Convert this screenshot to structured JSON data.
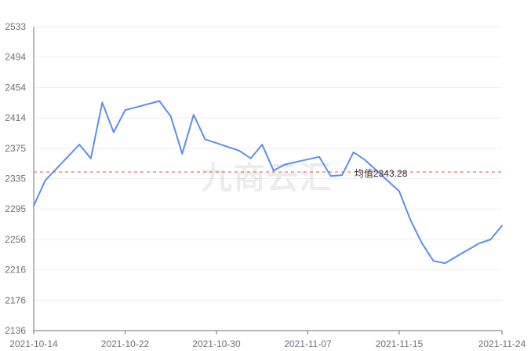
{
  "chart_data": {
    "type": "line",
    "title": "",
    "xlabel": "",
    "ylabel": "",
    "ylim": [
      2136,
      2533
    ],
    "yticks": [
      "2533",
      "2494",
      "2454",
      "2414",
      "2375",
      "2335",
      "2295",
      "2256",
      "2216",
      "2176",
      "2136"
    ],
    "xticks": [
      "2021-10-14",
      "2021-10-22",
      "2021-10-30",
      "2021-11-07",
      "2021-11-15",
      "2021-11-24"
    ],
    "x_range": [
      "2021-10-14",
      "2021-11-24"
    ],
    "grid": true,
    "colors": {
      "line": "#5b8ff0",
      "average": "#e8524f",
      "grid": "#eeeeee",
      "axis": "#6e7079"
    },
    "average": {
      "value": 2343.28,
      "label": "均值2343.28"
    },
    "watermark": "九商云汇",
    "series": [
      {
        "x": [
          "2021-10-14",
          "2021-10-15",
          "2021-10-18",
          "2021-10-19",
          "2021-10-20",
          "2021-10-21",
          "2021-10-22",
          "2021-10-25",
          "2021-10-26",
          "2021-10-27",
          "2021-10-28",
          "2021-10-29",
          "2021-11-01",
          "2021-11-02",
          "2021-11-03",
          "2021-11-04",
          "2021-11-05",
          "2021-11-08",
          "2021-11-09",
          "2021-11-10",
          "2021-11-11",
          "2021-11-12",
          "2021-11-15",
          "2021-11-16",
          "2021-11-17",
          "2021-11-18",
          "2021-11-19",
          "2021-11-22",
          "2021-11-23",
          "2021-11-24"
        ],
        "values": [
          2299,
          2332,
          2379,
          2361,
          2434,
          2395,
          2424,
          2436,
          2416,
          2367,
          2418,
          2386,
          2371,
          2361,
          2379,
          2345,
          2353,
          2363,
          2338,
          2339,
          2369,
          2359,
          2318,
          2280,
          2250,
          2227,
          2224,
          2250,
          2255,
          2273
        ]
      }
    ]
  }
}
